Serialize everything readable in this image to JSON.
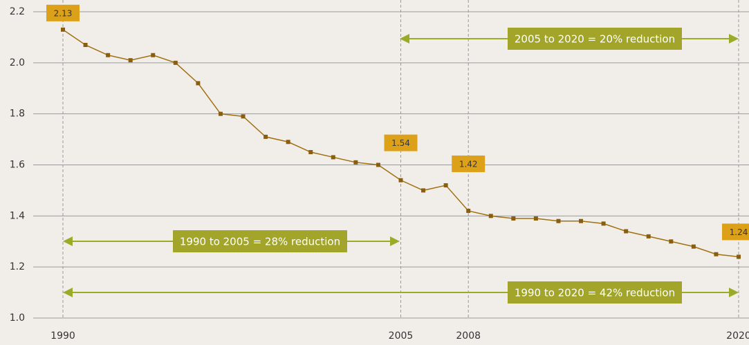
{
  "chart_data": {
    "type": "line",
    "x": [
      1990,
      1991,
      1992,
      1993,
      1994,
      1995,
      1996,
      1997,
      1998,
      1999,
      2000,
      2001,
      2002,
      2003,
      2004,
      2005,
      2006,
      2007,
      2008,
      2009,
      2010,
      2011,
      2012,
      2013,
      2014,
      2015,
      2016,
      2017,
      2018,
      2019,
      2020
    ],
    "values": [
      2.13,
      2.07,
      2.03,
      2.01,
      2.03,
      2.0,
      1.92,
      1.8,
      1.79,
      1.71,
      1.69,
      1.65,
      1.63,
      1.61,
      1.6,
      1.54,
      1.5,
      1.52,
      1.42,
      1.4,
      1.39,
      1.39,
      1.38,
      1.38,
      1.37,
      1.34,
      1.32,
      1.3,
      1.28,
      1.25,
      1.24
    ],
    "value_labels": [
      "2.13",
      null,
      null,
      null,
      null,
      null,
      null,
      null,
      null,
      null,
      null,
      null,
      null,
      null,
      null,
      "1.54",
      null,
      null,
      "1.42",
      null,
      null,
      null,
      null,
      null,
      null,
      null,
      null,
      null,
      null,
      null,
      "1.24"
    ],
    "color": "#a0700f",
    "xlim": [
      1990,
      2020
    ],
    "xticks": [
      1990,
      2005,
      2008,
      2020
    ],
    "ylim": [
      1.0,
      2.2
    ],
    "yticks": [
      {
        "value": 1.0,
        "label": "1.0"
      },
      1.2,
      1.4,
      1.6,
      1.8,
      {
        "value": 2.0,
        "label": "2.0"
      },
      2.2
    ],
    "grid": true,
    "annotations": [
      "2005 to 2020 = 20% reduction",
      "1990 to 2005 = 28% reduction",
      "1990 to 2020 = 42% reduction"
    ]
  }
}
